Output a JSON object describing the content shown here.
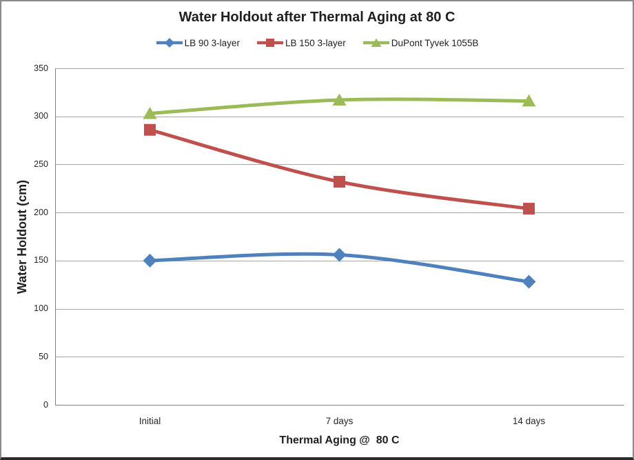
{
  "chart_data": {
    "type": "line",
    "title": "Water Holdout after Thermal Aging at 80 C",
    "xlabel": "Thermal Aging @  80 C",
    "ylabel": "Water Holdout (cm)",
    "categories": [
      "Initial",
      "7 days",
      "14 days"
    ],
    "series": [
      {
        "name": "LB 90 3-layer",
        "color": "#4F81BD",
        "marker": "diamond",
        "values": [
          150,
          156,
          128
        ]
      },
      {
        "name": "LB 150 3-layer",
        "color": "#C0504D",
        "marker": "square",
        "values": [
          286,
          232,
          204
        ]
      },
      {
        "name": "DuPont Tyvek 1055B",
        "color": "#9BBB59",
        "marker": "triangle",
        "values": [
          303,
          317,
          316
        ]
      }
    ],
    "ylim": [
      0,
      350
    ],
    "yticks": [
      0,
      50,
      100,
      150,
      200,
      250,
      300,
      350
    ],
    "grid": "horizontal",
    "legend_position": "top",
    "smooth_lines": true,
    "styles": {
      "gridline_color": "#A6A6A6",
      "axis_color": "#808080",
      "text_color": "#1F1F1F",
      "background": "#FFFFFF"
    }
  }
}
